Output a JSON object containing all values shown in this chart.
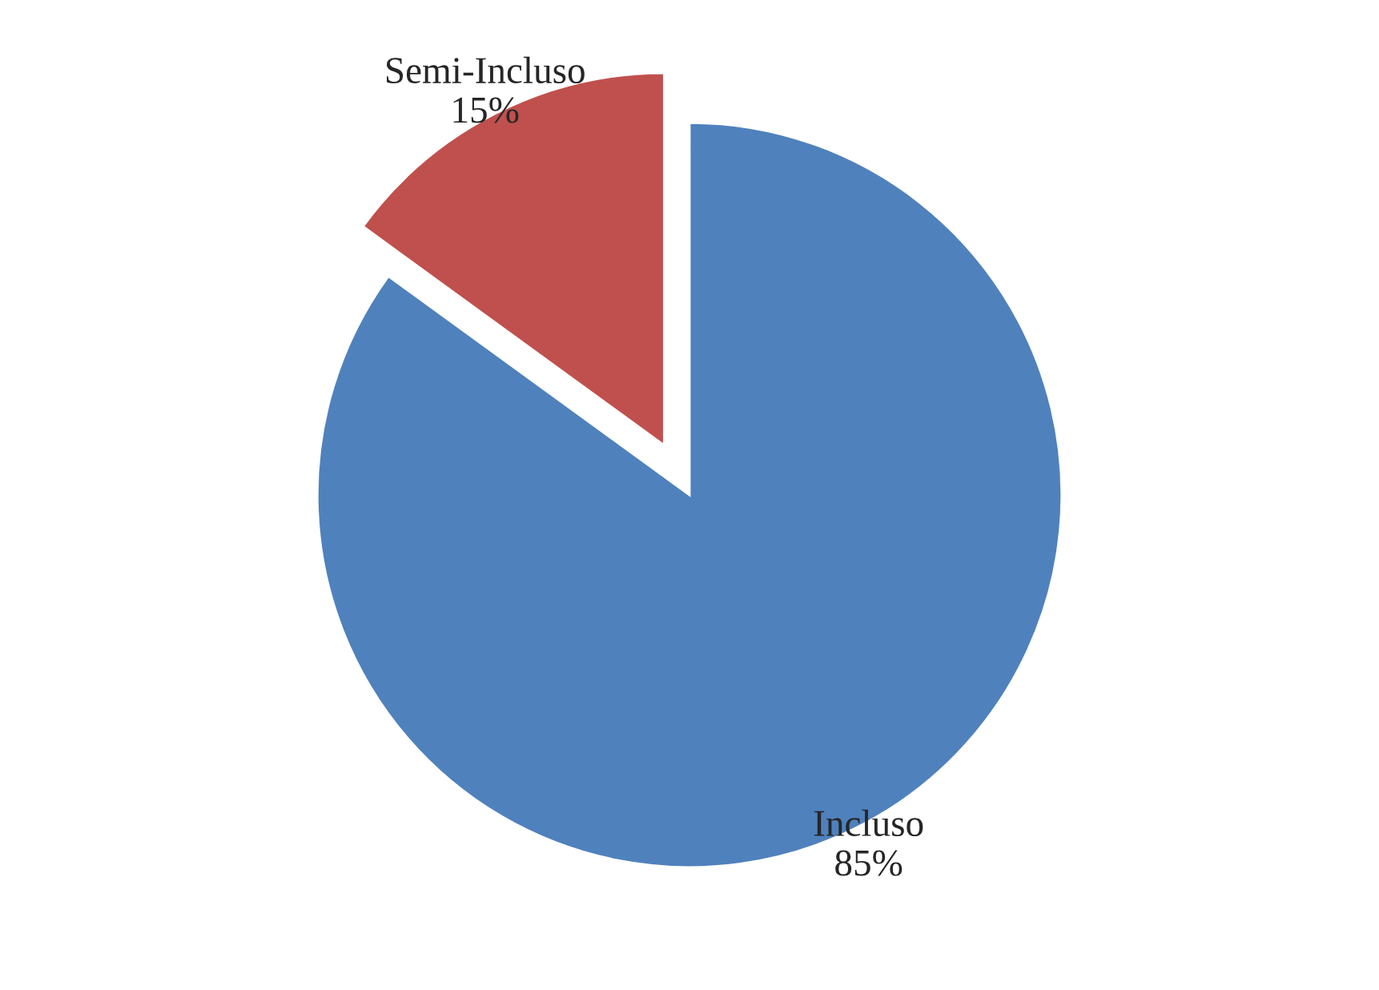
{
  "chart_data": {
    "type": "pie",
    "categories": [
      "Incluso",
      "Semi-Incluso"
    ],
    "values": [
      85,
      15
    ],
    "value_labels": [
      "85%",
      "15%"
    ],
    "colors": [
      "#4f81bd",
      "#c0504d"
    ],
    "legend": false
  }
}
